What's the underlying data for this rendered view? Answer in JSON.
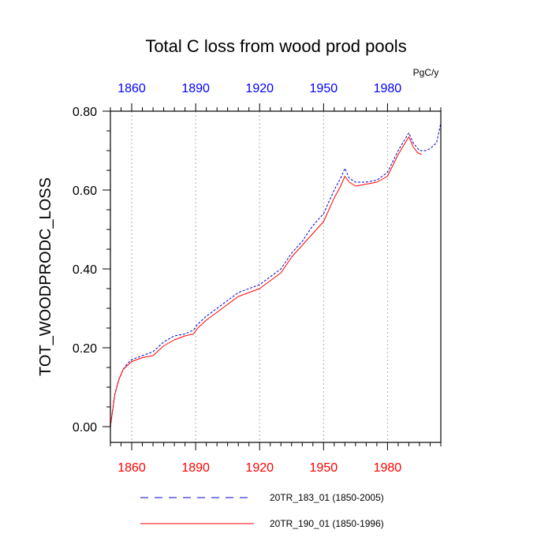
{
  "chart_data": {
    "type": "line",
    "title": "Total C loss from wood prod pools",
    "ylabel": "TOT_WOODPRODC_LOSS",
    "units": "PgC/y",
    "xlim": [
      1850,
      2005
    ],
    "ylim": [
      -0.04,
      0.8
    ],
    "xticks": [
      1860,
      1890,
      1920,
      1950,
      1980
    ],
    "xtick_labels_top": [
      "1860",
      "1890",
      "1920",
      "1950",
      "1980"
    ],
    "xtick_labels_bottom": [
      "1860",
      "1890",
      "1920",
      "1950",
      "1980"
    ],
    "yticks": [
      0.0,
      0.2,
      0.4,
      0.6,
      0.8
    ],
    "ytick_labels": [
      "0.00",
      "0.20",
      "0.40",
      "0.60",
      "0.80"
    ],
    "grid": "vertical dotted at major x ticks",
    "colors": {
      "top_axis_labels": "#0000ff",
      "bottom_axis_labels": "#ff0000"
    },
    "series": [
      {
        "name": "20TR_183_01 (1850-2005)",
        "color": "#0000cc",
        "style": "dashed",
        "x": [
          1850,
          1851,
          1852,
          1854,
          1856,
          1858,
          1860,
          1865,
          1870,
          1875,
          1880,
          1885,
          1889,
          1891,
          1895,
          1900,
          1905,
          1910,
          1915,
          1920,
          1925,
          1930,
          1935,
          1940,
          1945,
          1950,
          1955,
          1958,
          1960,
          1962,
          1965,
          1970,
          1975,
          1980,
          1985,
          1990,
          1992,
          1995,
          1998,
          2000,
          2003,
          2005
        ],
        "values": [
          0.0,
          0.04,
          0.08,
          0.12,
          0.145,
          0.16,
          0.17,
          0.18,
          0.19,
          0.215,
          0.23,
          0.235,
          0.245,
          0.26,
          0.28,
          0.3,
          0.32,
          0.34,
          0.35,
          0.36,
          0.38,
          0.4,
          0.44,
          0.47,
          0.51,
          0.54,
          0.6,
          0.63,
          0.655,
          0.63,
          0.62,
          0.62,
          0.625,
          0.645,
          0.7,
          0.745,
          0.72,
          0.7,
          0.7,
          0.705,
          0.72,
          0.77
        ]
      },
      {
        "name": "20TR_190_01 (1850-1996)",
        "color": "#ff0000",
        "style": "solid",
        "x": [
          1850,
          1851,
          1852,
          1854,
          1856,
          1858,
          1860,
          1865,
          1870,
          1875,
          1880,
          1885,
          1889,
          1891,
          1895,
          1900,
          1905,
          1910,
          1915,
          1920,
          1925,
          1930,
          1935,
          1940,
          1945,
          1950,
          1955,
          1958,
          1960,
          1962,
          1965,
          1970,
          1975,
          1980,
          1985,
          1990,
          1992,
          1994,
          1996
        ],
        "values": [
          0.0,
          0.04,
          0.08,
          0.12,
          0.145,
          0.155,
          0.165,
          0.175,
          0.18,
          0.205,
          0.22,
          0.23,
          0.235,
          0.25,
          0.27,
          0.29,
          0.31,
          0.33,
          0.34,
          0.35,
          0.37,
          0.39,
          0.43,
          0.46,
          0.49,
          0.52,
          0.58,
          0.61,
          0.635,
          0.62,
          0.61,
          0.615,
          0.62,
          0.635,
          0.69,
          0.735,
          0.71,
          0.695,
          0.69
        ]
      }
    ]
  }
}
